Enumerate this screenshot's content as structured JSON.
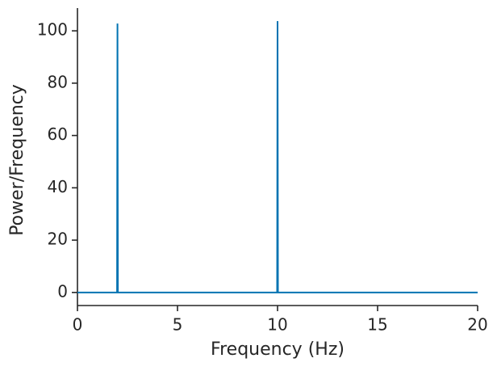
{
  "chart_data": {
    "type": "line",
    "x_label": "Frequency (Hz)",
    "y_label": "Power/Frequency",
    "series": [
      {
        "color": "#0173b2",
        "x": [
          0,
          1.98,
          2,
          2.02,
          9.98,
          10,
          10.02,
          20
        ],
        "values": [
          0,
          0,
          102.8,
          0,
          0,
          103.7,
          0,
          0
        ]
      }
    ],
    "xlim": [
      0,
      20
    ],
    "ylim": [
      -5,
      108.7
    ],
    "xticks": [
      0,
      5,
      10,
      15,
      20
    ],
    "yticks": [
      0,
      20,
      40,
      60,
      80,
      100
    ]
  }
}
